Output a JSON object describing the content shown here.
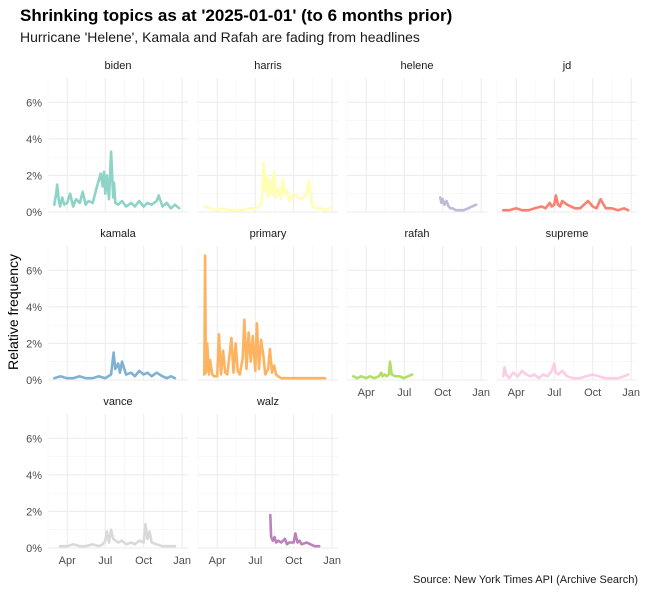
{
  "title": "Shrinking topics as at '2025-01-01' (to 6 months prior)",
  "subtitle": "Hurricane 'Helene', Kamala and Rafah are fading from headlines",
  "caption": "Source: New York Times API (Archive Search)",
  "chart_data": {
    "type": "line",
    "facets": true,
    "xlabel": "",
    "ylabel": "Relative frequency",
    "x_ticks": [
      "Apr",
      "Jul",
      "Oct",
      "Jan"
    ],
    "y_ticks": [
      "0%",
      "2%",
      "4%",
      "6%"
    ],
    "xlim": [
      "2024-02-15",
      "2025-01-15"
    ],
    "ylim": [
      0,
      7
    ],
    "grid": true,
    "series": [
      {
        "name": "biden",
        "color": "#8DD3C7",
        "x": [
          "2024-03-01",
          "2024-03-05",
          "2024-03-08",
          "2024-03-12",
          "2024-03-15",
          "2024-03-20",
          "2024-03-25",
          "2024-04-01",
          "2024-04-08",
          "2024-04-15",
          "2024-04-22",
          "2024-05-01",
          "2024-05-08",
          "2024-05-15",
          "2024-05-22",
          "2024-06-01",
          "2024-06-10",
          "2024-06-20",
          "2024-06-25",
          "2024-06-28",
          "2024-07-01",
          "2024-07-05",
          "2024-07-10",
          "2024-07-15",
          "2024-07-20",
          "2024-07-22",
          "2024-07-25",
          "2024-08-01",
          "2024-08-10",
          "2024-08-20",
          "2024-09-01",
          "2024-09-10",
          "2024-09-20",
          "2024-10-01",
          "2024-10-10",
          "2024-10-20",
          "2024-11-01",
          "2024-11-06",
          "2024-11-15",
          "2024-11-25",
          "2024-12-05",
          "2024-12-15",
          "2024-12-25"
        ],
        "values": [
          0.4,
          0.9,
          1.5,
          0.6,
          0.3,
          0.8,
          0.4,
          0.5,
          1.0,
          0.3,
          0.7,
          0.5,
          1.1,
          0.4,
          0.6,
          0.5,
          1.3,
          2.1,
          1.4,
          2.2,
          1.0,
          2.0,
          0.7,
          3.3,
          0.8,
          1.6,
          0.5,
          0.4,
          0.6,
          0.3,
          0.5,
          0.3,
          0.6,
          0.3,
          0.5,
          0.4,
          0.6,
          0.9,
          0.3,
          0.5,
          0.2,
          0.4,
          0.2
        ]
      },
      {
        "name": "harris",
        "color": "#FFFFB3",
        "x": [
          "2024-03-01",
          "2024-03-15",
          "2024-04-01",
          "2024-04-15",
          "2024-05-01",
          "2024-05-15",
          "2024-06-01",
          "2024-06-15",
          "2024-07-01",
          "2024-07-10",
          "2024-07-15",
          "2024-07-18",
          "2024-07-21",
          "2024-07-24",
          "2024-07-28",
          "2024-08-01",
          "2024-08-05",
          "2024-08-10",
          "2024-08-15",
          "2024-08-20",
          "2024-08-25",
          "2024-09-01",
          "2024-09-05",
          "2024-09-10",
          "2024-09-15",
          "2024-09-20",
          "2024-10-01",
          "2024-10-10",
          "2024-10-20",
          "2024-11-01",
          "2024-11-06",
          "2024-11-15",
          "2024-11-25",
          "2024-12-05",
          "2024-12-15",
          "2024-12-25"
        ],
        "values": [
          0.3,
          0.2,
          0.1,
          0.2,
          0.1,
          0.1,
          0.1,
          0.2,
          0.2,
          0.3,
          0.5,
          1.0,
          2.7,
          1.2,
          2.0,
          0.8,
          1.8,
          0.9,
          2.2,
          0.8,
          1.3,
          0.7,
          1.8,
          1.0,
          1.2,
          0.6,
          1.0,
          0.8,
          0.7,
          1.0,
          1.7,
          0.3,
          0.2,
          0.2,
          0.1,
          0.2
        ]
      },
      {
        "name": "helene",
        "color": "#BEBADA",
        "x": [
          "2024-09-25",
          "2024-09-28",
          "2024-10-01",
          "2024-10-05",
          "2024-10-10",
          "2024-10-15",
          "2024-10-20",
          "2024-10-25",
          "2024-11-01",
          "2024-11-10",
          "2024-11-20",
          "2024-12-01",
          "2024-12-10",
          "2024-12-20"
        ],
        "values": [
          0.8,
          0.5,
          0.7,
          0.4,
          0.6,
          0.3,
          0.2,
          0.2,
          0.1,
          0.1,
          0.1,
          0.2,
          0.3,
          0.4
        ]
      },
      {
        "name": "jd",
        "color": "#FB8072",
        "x": [
          "2024-03-01",
          "2024-03-15",
          "2024-04-01",
          "2024-04-15",
          "2024-05-01",
          "2024-05-15",
          "2024-06-01",
          "2024-06-10",
          "2024-06-20",
          "2024-06-25",
          "2024-07-01",
          "2024-07-05",
          "2024-07-10",
          "2024-07-15",
          "2024-07-20",
          "2024-08-01",
          "2024-08-10",
          "2024-08-20",
          "2024-09-01",
          "2024-09-10",
          "2024-09-20",
          "2024-10-01",
          "2024-10-10",
          "2024-10-20",
          "2024-11-01",
          "2024-11-15",
          "2024-12-01",
          "2024-12-15",
          "2024-12-25"
        ],
        "values": [
          0.1,
          0.1,
          0.2,
          0.1,
          0.1,
          0.2,
          0.3,
          0.2,
          0.5,
          0.3,
          0.4,
          0.9,
          0.4,
          0.3,
          0.6,
          0.4,
          0.3,
          0.2,
          0.2,
          0.4,
          0.6,
          0.3,
          0.2,
          0.7,
          0.2,
          0.2,
          0.1,
          0.2,
          0.1
        ]
      },
      {
        "name": "kamala",
        "color": "#80B1D3",
        "x": [
          "2024-03-01",
          "2024-03-15",
          "2024-04-01",
          "2024-04-15",
          "2024-05-01",
          "2024-05-15",
          "2024-06-01",
          "2024-06-15",
          "2024-07-01",
          "2024-07-15",
          "2024-07-21",
          "2024-07-25",
          "2024-08-01",
          "2024-08-05",
          "2024-08-10",
          "2024-08-20",
          "2024-09-01",
          "2024-09-10",
          "2024-09-20",
          "2024-10-01",
          "2024-10-10",
          "2024-10-20",
          "2024-11-01",
          "2024-11-15",
          "2024-11-25",
          "2024-12-05",
          "2024-12-15"
        ],
        "values": [
          0.1,
          0.2,
          0.1,
          0.1,
          0.2,
          0.1,
          0.1,
          0.2,
          0.1,
          0.3,
          1.5,
          0.6,
          0.9,
          0.4,
          1.0,
          0.3,
          0.4,
          0.2,
          0.5,
          0.3,
          0.4,
          0.2,
          0.4,
          0.2,
          0.1,
          0.2,
          0.1
        ]
      },
      {
        "name": "primary",
        "color": "#FDB462",
        "x": [
          "2024-03-01",
          "2024-03-03",
          "2024-03-05",
          "2024-03-08",
          "2024-03-12",
          "2024-03-15",
          "2024-03-20",
          "2024-03-25",
          "2024-04-01",
          "2024-04-05",
          "2024-04-10",
          "2024-04-15",
          "2024-04-20",
          "2024-04-25",
          "2024-05-01",
          "2024-05-05",
          "2024-05-10",
          "2024-05-15",
          "2024-05-20",
          "2024-05-25",
          "2024-06-01",
          "2024-06-05",
          "2024-06-10",
          "2024-06-15",
          "2024-06-20",
          "2024-06-25",
          "2024-07-01",
          "2024-07-05",
          "2024-07-10",
          "2024-07-15",
          "2024-07-20",
          "2024-07-25",
          "2024-08-01",
          "2024-08-05",
          "2024-08-10",
          "2024-08-15",
          "2024-08-20",
          "2024-08-25",
          "2024-09-01",
          "2024-09-15",
          "2024-10-01",
          "2024-10-15",
          "2024-11-01",
          "2024-11-15",
          "2024-12-01",
          "2024-12-15"
        ],
        "values": [
          0.3,
          6.8,
          0.4,
          2.0,
          0.3,
          1.1,
          0.3,
          0.2,
          0.2,
          2.5,
          0.3,
          1.6,
          0.4,
          0.3,
          1.5,
          2.3,
          0.4,
          2.0,
          0.5,
          0.3,
          1.2,
          3.3,
          0.6,
          2.6,
          1.0,
          2.4,
          0.5,
          3.1,
          0.6,
          2.2,
          1.4,
          0.3,
          0.6,
          1.7,
          0.4,
          0.8,
          0.3,
          0.2,
          0.1,
          0.1,
          0.1,
          0.1,
          0.1,
          0.1,
          0.1,
          0.1
        ]
      },
      {
        "name": "rafah",
        "color": "#B3DE69",
        "x": [
          "2024-03-01",
          "2024-03-10",
          "2024-03-20",
          "2024-04-01",
          "2024-04-10",
          "2024-04-20",
          "2024-05-01",
          "2024-05-07",
          "2024-05-10",
          "2024-05-15",
          "2024-05-20",
          "2024-05-25",
          "2024-05-28",
          "2024-06-01",
          "2024-06-10",
          "2024-06-20",
          "2024-06-30",
          "2024-07-10",
          "2024-07-20"
        ],
        "values": [
          0.2,
          0.1,
          0.2,
          0.1,
          0.2,
          0.1,
          0.2,
          0.4,
          0.2,
          0.3,
          0.2,
          0.3,
          1.0,
          0.3,
          0.2,
          0.2,
          0.1,
          0.2,
          0.3
        ]
      },
      {
        "name": "supreme",
        "color": "#FCCDE5",
        "x": [
          "2024-03-01",
          "2024-03-04",
          "2024-03-08",
          "2024-03-15",
          "2024-03-25",
          "2024-04-05",
          "2024-04-15",
          "2024-04-25",
          "2024-05-05",
          "2024-05-15",
          "2024-05-25",
          "2024-06-05",
          "2024-06-15",
          "2024-06-25",
          "2024-07-01",
          "2024-07-05",
          "2024-07-10",
          "2024-07-20",
          "2024-08-01",
          "2024-08-15",
          "2024-09-01",
          "2024-09-15",
          "2024-10-01",
          "2024-10-15",
          "2024-11-01",
          "2024-11-15",
          "2024-12-01",
          "2024-12-15",
          "2024-12-25"
        ],
        "values": [
          0.2,
          0.7,
          0.3,
          0.1,
          0.4,
          0.2,
          0.5,
          0.3,
          0.2,
          0.3,
          0.1,
          0.3,
          0.2,
          0.5,
          0.9,
          0.4,
          0.3,
          0.5,
          0.2,
          0.1,
          0.1,
          0.2,
          0.3,
          0.2,
          0.1,
          0.1,
          0.1,
          0.2,
          0.3
        ]
      },
      {
        "name": "vance",
        "color": "#D9D9D9",
        "x": [
          "2024-03-15",
          "2024-04-01",
          "2024-04-15",
          "2024-05-01",
          "2024-05-15",
          "2024-06-01",
          "2024-06-15",
          "2024-06-25",
          "2024-07-01",
          "2024-07-05",
          "2024-07-10",
          "2024-07-15",
          "2024-07-20",
          "2024-08-01",
          "2024-08-10",
          "2024-08-20",
          "2024-09-01",
          "2024-09-10",
          "2024-09-20",
          "2024-10-01",
          "2024-10-05",
          "2024-10-10",
          "2024-10-15",
          "2024-10-20",
          "2024-11-01",
          "2024-11-15",
          "2024-12-01",
          "2024-12-15"
        ],
        "values": [
          0.1,
          0.1,
          0.2,
          0.1,
          0.1,
          0.2,
          0.1,
          0.2,
          0.4,
          0.9,
          0.3,
          1.0,
          0.5,
          0.3,
          0.4,
          0.2,
          0.3,
          0.2,
          0.4,
          0.3,
          1.3,
          0.5,
          0.9,
          0.3,
          0.2,
          0.1,
          0.1,
          0.1
        ]
      },
      {
        "name": "walz",
        "color": "#BC80BD",
        "x": [
          "2024-08-06",
          "2024-08-08",
          "2024-08-12",
          "2024-08-16",
          "2024-08-20",
          "2024-08-25",
          "2024-09-01",
          "2024-09-10",
          "2024-09-15",
          "2024-09-20",
          "2024-10-01",
          "2024-10-05",
          "2024-10-10",
          "2024-10-15",
          "2024-10-20",
          "2024-11-01",
          "2024-11-10",
          "2024-11-20",
          "2024-12-01"
        ],
        "values": [
          1.8,
          0.6,
          0.4,
          0.6,
          0.3,
          0.4,
          0.3,
          0.5,
          0.2,
          0.3,
          0.3,
          0.8,
          0.3,
          0.4,
          0.2,
          0.3,
          0.2,
          0.1,
          0.1
        ]
      }
    ]
  }
}
